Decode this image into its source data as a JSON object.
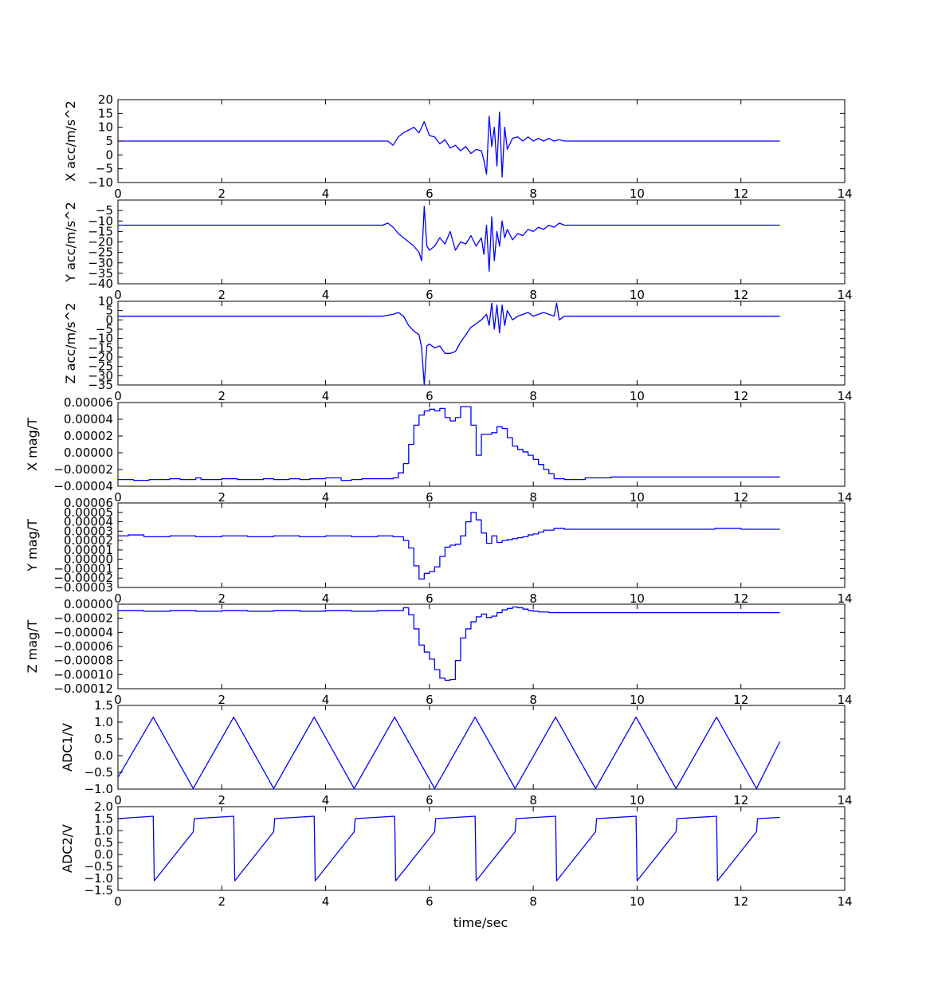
{
  "chart_data": [
    {
      "type": "line",
      "ylabel": "X acc/m/s^2",
      "xlabel": "",
      "xlim": [
        0,
        14
      ],
      "ylim": [
        -10,
        20
      ],
      "x_ticks": [
        "0",
        "2",
        "4",
        "6",
        "8",
        "10",
        "12",
        "14"
      ],
      "y_ticks": [
        "−10",
        "−5",
        "0",
        "5",
        "10",
        "15",
        "20"
      ],
      "series": [
        {
          "x": [
            0,
            5.0,
            5.2,
            5.3,
            5.4,
            5.5,
            5.6,
            5.7,
            5.8,
            5.9,
            6.0,
            6.1,
            6.2,
            6.3,
            6.4,
            6.5,
            6.6,
            6.7,
            6.8,
            6.9,
            7.0,
            7.05,
            7.1,
            7.15,
            7.2,
            7.25,
            7.3,
            7.35,
            7.4,
            7.45,
            7.5,
            7.6,
            7.7,
            7.8,
            7.9,
            8.0,
            8.1,
            8.2,
            8.3,
            8.4,
            8.5,
            8.6,
            9.0,
            10.0,
            11.0,
            12.0,
            12.75
          ],
          "y": [
            5,
            5,
            5,
            3.5,
            6.5,
            8,
            9,
            10,
            8,
            12,
            7,
            6.5,
            4,
            5.5,
            2.5,
            3.5,
            1.5,
            3,
            0.5,
            2,
            1.5,
            -2,
            -7,
            14,
            3,
            10,
            -4,
            15.5,
            -8,
            10,
            2,
            6,
            6.5,
            5,
            6.5,
            5,
            6,
            5,
            6,
            5,
            5.5,
            5,
            5,
            5,
            5,
            5,
            5
          ]
        }
      ]
    },
    {
      "type": "line",
      "ylabel": "Y acc/m/s^2",
      "xlabel": "",
      "xlim": [
        0,
        14
      ],
      "ylim": [
        -40,
        0
      ],
      "x_ticks": [
        "0",
        "2",
        "4",
        "6",
        "8",
        "10",
        "12",
        "14"
      ],
      "y_ticks": [
        "−5",
        "−10",
        "−15",
        "−20",
        "−25",
        "−30",
        "−35",
        "−40"
      ],
      "series": [
        {
          "x": [
            0,
            5.1,
            5.2,
            5.3,
            5.4,
            5.5,
            5.6,
            5.7,
            5.8,
            5.85,
            5.9,
            5.95,
            6.0,
            6.1,
            6.2,
            6.3,
            6.4,
            6.5,
            6.6,
            6.7,
            6.8,
            6.9,
            7.0,
            7.05,
            7.1,
            7.15,
            7.2,
            7.25,
            7.3,
            7.35,
            7.4,
            7.45,
            7.5,
            7.6,
            7.7,
            7.8,
            7.9,
            8.0,
            8.1,
            8.2,
            8.3,
            8.4,
            8.5,
            8.6,
            9.0,
            10.0,
            11.0,
            12.0,
            12.75
          ],
          "y": [
            -12,
            -12,
            -11,
            -13,
            -16,
            -18,
            -20,
            -22,
            -25,
            -29,
            -3,
            -22,
            -24,
            -22,
            -18,
            -21,
            -15,
            -24,
            -20,
            -21,
            -17,
            -22,
            -18,
            -26,
            -12,
            -34,
            -8,
            -29,
            -15,
            -22,
            -10,
            -18,
            -14,
            -19,
            -16,
            -17,
            -14,
            -15,
            -13,
            -14,
            -12,
            -13,
            -11,
            -12,
            -12,
            -12,
            -12,
            -12,
            -12
          ]
        }
      ]
    },
    {
      "type": "line",
      "ylabel": "Z acc/m/s^2",
      "xlabel": "",
      "xlim": [
        0,
        14
      ],
      "ylim": [
        -35,
        10
      ],
      "x_ticks": [
        "0",
        "2",
        "4",
        "6",
        "8",
        "10",
        "12",
        "14"
      ],
      "y_ticks": [
        "10",
        "5",
        "0",
        "−5",
        "−10",
        "−15",
        "−20",
        "−25",
        "−30",
        "−35"
      ],
      "series": [
        {
          "x": [
            0,
            5.1,
            5.3,
            5.4,
            5.5,
            5.6,
            5.7,
            5.8,
            5.85,
            5.9,
            5.95,
            6.0,
            6.1,
            6.2,
            6.3,
            6.4,
            6.5,
            6.6,
            6.7,
            6.8,
            6.9,
            7.0,
            7.1,
            7.15,
            7.2,
            7.25,
            7.3,
            7.35,
            7.4,
            7.45,
            7.5,
            7.6,
            7.7,
            7.8,
            7.9,
            8.0,
            8.2,
            8.4,
            8.45,
            8.5,
            8.6,
            9.0,
            10.0,
            11.0,
            12.0,
            12.75
          ],
          "y": [
            2,
            2,
            3,
            4,
            2,
            -3,
            -6,
            -8,
            -15,
            -35,
            -14,
            -13,
            -15,
            -14,
            -18,
            -18,
            -17,
            -12,
            -8,
            -4,
            -2,
            0,
            3,
            -3,
            9,
            -5,
            8,
            -7,
            8,
            -3,
            5,
            0,
            2,
            3,
            4,
            2,
            4,
            2,
            9,
            0,
            2,
            2,
            2,
            2,
            2,
            2
          ]
        }
      ]
    },
    {
      "type": "line",
      "step": true,
      "ylabel": "X mag/T",
      "xlabel": "",
      "xlim": [
        0,
        14
      ],
      "ylim": [
        -4e-05,
        6e-05
      ],
      "x_ticks": [
        "0",
        "2",
        "4",
        "6",
        "8",
        "10",
        "12",
        "14"
      ],
      "y_ticks": [
        "0.00006",
        "0.00004",
        "0.00002",
        "0.00000",
        "−0.00002",
        "−0.00004"
      ],
      "series": [
        {
          "x": [
            0,
            0.3,
            0.6,
            1.0,
            1.2,
            1.5,
            1.6,
            2.0,
            2.3,
            2.5,
            2.8,
            3.0,
            3.3,
            3.5,
            3.7,
            4.0,
            4.3,
            4.5,
            4.7,
            5.0,
            5.3,
            5.4,
            5.5,
            5.6,
            5.7,
            5.8,
            5.9,
            6.0,
            6.1,
            6.2,
            6.3,
            6.4,
            6.5,
            6.6,
            6.7,
            6.8,
            6.9,
            7.0,
            7.1,
            7.2,
            7.3,
            7.4,
            7.5,
            7.6,
            7.7,
            7.8,
            7.9,
            8.0,
            8.1,
            8.2,
            8.3,
            8.4,
            8.6,
            9.0,
            9.5,
            10.0,
            11.0,
            11.5,
            12.0,
            12.75
          ],
          "y": [
            -3.2e-05,
            -3.3e-05,
            -3.2e-05,
            -3.1e-05,
            -3.2e-05,
            -3e-05,
            -3.2e-05,
            -3.1e-05,
            -3.2e-05,
            -3.2e-05,
            -3.1e-05,
            -3.2e-05,
            -3.1e-05,
            -3.2e-05,
            -3.1e-05,
            -3e-05,
            -3.3e-05,
            -3.2e-05,
            -3.1e-05,
            -3.1e-05,
            -3e-05,
            -2.4e-05,
            -1.3e-05,
            1e-05,
            3.3e-05,
            4.5e-05,
            5e-05,
            5.2e-05,
            5e-05,
            5.3e-05,
            4.2e-05,
            3.8e-05,
            4.2e-05,
            5.5e-05,
            5.5e-05,
            3.3e-05,
            -3e-06,
            2.2e-05,
            2.2e-05,
            2.4e-05,
            3.1e-05,
            2.9e-05,
            1.8e-05,
            8e-06,
            4e-06,
            1e-06,
            -3e-06,
            -8e-06,
            -1.4e-05,
            -2e-05,
            -2.5e-05,
            -3.1e-05,
            -3.2e-05,
            -3e-05,
            -2.9e-05,
            -2.9e-05,
            -2.9e-05,
            -2.9e-05,
            -2.9e-05,
            -2.9e-05
          ]
        }
      ]
    },
    {
      "type": "line",
      "step": true,
      "ylabel": "Y mag/T",
      "xlabel": "",
      "xlim": [
        0,
        14
      ],
      "ylim": [
        -3e-05,
        6e-05
      ],
      "x_ticks": [
        "0",
        "2",
        "4",
        "6",
        "8",
        "10",
        "12",
        "14"
      ],
      "y_ticks": [
        "0.00006",
        "0.00005",
        "0.00004",
        "0.00003",
        "0.00002",
        "0.00001",
        "0.00000",
        "−0.00001",
        "−0.00002",
        "−0.00003"
      ],
      "series": [
        {
          "x": [
            0,
            0.2,
            0.5,
            1.0,
            1.5,
            2.0,
            2.5,
            3.0,
            3.5,
            4.0,
            4.5,
            5.0,
            5.3,
            5.5,
            5.6,
            5.7,
            5.8,
            5.9,
            6.0,
            6.1,
            6.2,
            6.3,
            6.4,
            6.5,
            6.6,
            6.7,
            6.8,
            6.9,
            7.0,
            7.1,
            7.2,
            7.3,
            7.4,
            7.5,
            7.6,
            7.7,
            7.8,
            7.9,
            8.0,
            8.1,
            8.2,
            8.4,
            8.6,
            9.0,
            10.0,
            11.0,
            11.5,
            12.0,
            12.75
          ],
          "y": [
            2.5e-05,
            2.6e-05,
            2.4e-05,
            2.5e-05,
            2.4e-05,
            2.5e-05,
            2.4e-05,
            2.5e-05,
            2.4e-05,
            2.5e-05,
            2.4e-05,
            2.5e-05,
            2.4e-05,
            2e-05,
            1.2e-05,
            -7e-06,
            -2.1e-05,
            -1.5e-05,
            -1.3e-05,
            -8e-06,
            3e-06,
            1.3e-05,
            1.5e-05,
            1.6e-05,
            2.5e-05,
            4e-05,
            5e-05,
            4.2e-05,
            2.8e-05,
            1.7e-05,
            2.5e-05,
            1.8e-05,
            2e-05,
            2.1e-05,
            2.2e-05,
            2.3e-05,
            2.4e-05,
            2.6e-05,
            2.7e-05,
            2.9e-05,
            3.1e-05,
            3.3e-05,
            3.2e-05,
            3.2e-05,
            3.2e-05,
            3.2e-05,
            3.3e-05,
            3.2e-05,
            3.2e-05
          ]
        }
      ]
    },
    {
      "type": "line",
      "step": true,
      "ylabel": "Z mag/T",
      "xlabel": "",
      "xlim": [
        0,
        14
      ],
      "ylim": [
        -0.00012,
        0.0
      ],
      "x_ticks": [
        "0",
        "2",
        "4",
        "6",
        "8",
        "10",
        "12",
        "14"
      ],
      "y_ticks": [
        "0.00000",
        "−0.00002",
        "−0.00004",
        "−0.00006",
        "−0.00008",
        "−0.00010",
        "−0.00012"
      ],
      "series": [
        {
          "x": [
            0,
            0.5,
            1.0,
            1.5,
            2.0,
            2.5,
            3.0,
            3.5,
            4.0,
            4.5,
            5.0,
            5.5,
            5.6,
            5.7,
            5.8,
            5.9,
            6.0,
            6.1,
            6.2,
            6.3,
            6.4,
            6.5,
            6.6,
            6.7,
            6.8,
            6.9,
            7.0,
            7.1,
            7.2,
            7.3,
            7.4,
            7.5,
            7.6,
            7.7,
            7.8,
            7.9,
            8.0,
            8.1,
            8.3,
            8.5,
            9.0,
            9.5,
            10.0,
            11.0,
            12.0,
            12.75
          ],
          "y": [
            -9e-06,
            -1e-05,
            -9e-06,
            -1e-05,
            -9e-06,
            -1e-05,
            -9e-06,
            -1e-05,
            -9e-06,
            -1e-05,
            -9e-06,
            -5e-06,
            -1.5e-05,
            -3.5e-05,
            -5.8e-05,
            -6.8e-05,
            -7.8e-05,
            -9.3e-05,
            -0.000105,
            -0.000108,
            -0.000107,
            -8e-05,
            -4.8e-05,
            -3.5e-05,
            -2.5e-05,
            -1.8e-05,
            -1.4e-05,
            -1.9e-05,
            -1.7e-05,
            -1.2e-05,
            -8e-06,
            -6e-06,
            -4e-06,
            -5e-06,
            -7e-06,
            -9e-06,
            -1e-05,
            -1.1e-05,
            -1.2e-05,
            -1.2e-05,
            -1.2e-05,
            -1.2e-05,
            -1.2e-05,
            -1.2e-05,
            -1.2e-05,
            -1.2e-05
          ]
        }
      ]
    },
    {
      "type": "line",
      "ylabel": "ADC1/V",
      "xlabel": "",
      "xlim": [
        0,
        14
      ],
      "ylim": [
        -1.0,
        1.5
      ],
      "x_ticks": [
        "0",
        "2",
        "4",
        "6",
        "8",
        "10",
        "12",
        "14"
      ],
      "y_ticks": [
        "1.5",
        "1.0",
        "0.5",
        "0.0",
        "−0.5",
        "−1.0"
      ],
      "series": [
        {
          "x": [
            0,
            0.68,
            1.45,
            2.23,
            3.0,
            3.78,
            4.55,
            5.33,
            6.1,
            6.88,
            7.65,
            8.43,
            9.2,
            9.98,
            10.75,
            11.53,
            12.3,
            12.75
          ],
          "y": [
            -0.65,
            1.15,
            -0.98,
            1.15,
            -0.98,
            1.15,
            -0.98,
            1.15,
            -0.98,
            1.15,
            -0.98,
            1.15,
            -0.98,
            1.15,
            -0.98,
            1.15,
            -0.98,
            0.42
          ]
        }
      ]
    },
    {
      "type": "line",
      "ylabel": "ADC2/V",
      "xlabel": "time/sec",
      "xlim": [
        0,
        14
      ],
      "ylim": [
        -1.5,
        2.0
      ],
      "x_ticks": [
        "0",
        "2",
        "4",
        "6",
        "8",
        "10",
        "12",
        "14"
      ],
      "y_ticks": [
        "2.0",
        "1.5",
        "1.0",
        "0.5",
        "0.0",
        "−0.5",
        "−1.0",
        "−1.5"
      ],
      "series": [
        {
          "x": [
            0,
            0.68,
            0.7,
            1.45,
            1.47,
            2.23,
            2.25,
            3.0,
            3.02,
            3.78,
            3.8,
            4.55,
            4.57,
            5.33,
            5.35,
            6.1,
            6.12,
            6.88,
            6.9,
            7.65,
            7.67,
            8.43,
            8.45,
            9.2,
            9.22,
            9.98,
            10.0,
            10.75,
            10.77,
            11.53,
            11.55,
            12.3,
            12.32,
            12.75
          ],
          "y": [
            1.5,
            1.6,
            -1.1,
            0.95,
            1.5,
            1.6,
            -1.1,
            0.95,
            1.5,
            1.6,
            -1.1,
            0.95,
            1.5,
            1.6,
            -1.1,
            0.95,
            1.5,
            1.6,
            -1.1,
            0.95,
            1.5,
            1.6,
            -1.1,
            0.95,
            1.5,
            1.6,
            -1.1,
            0.95,
            1.5,
            1.6,
            -1.1,
            0.95,
            1.5,
            1.55
          ]
        }
      ]
    }
  ]
}
